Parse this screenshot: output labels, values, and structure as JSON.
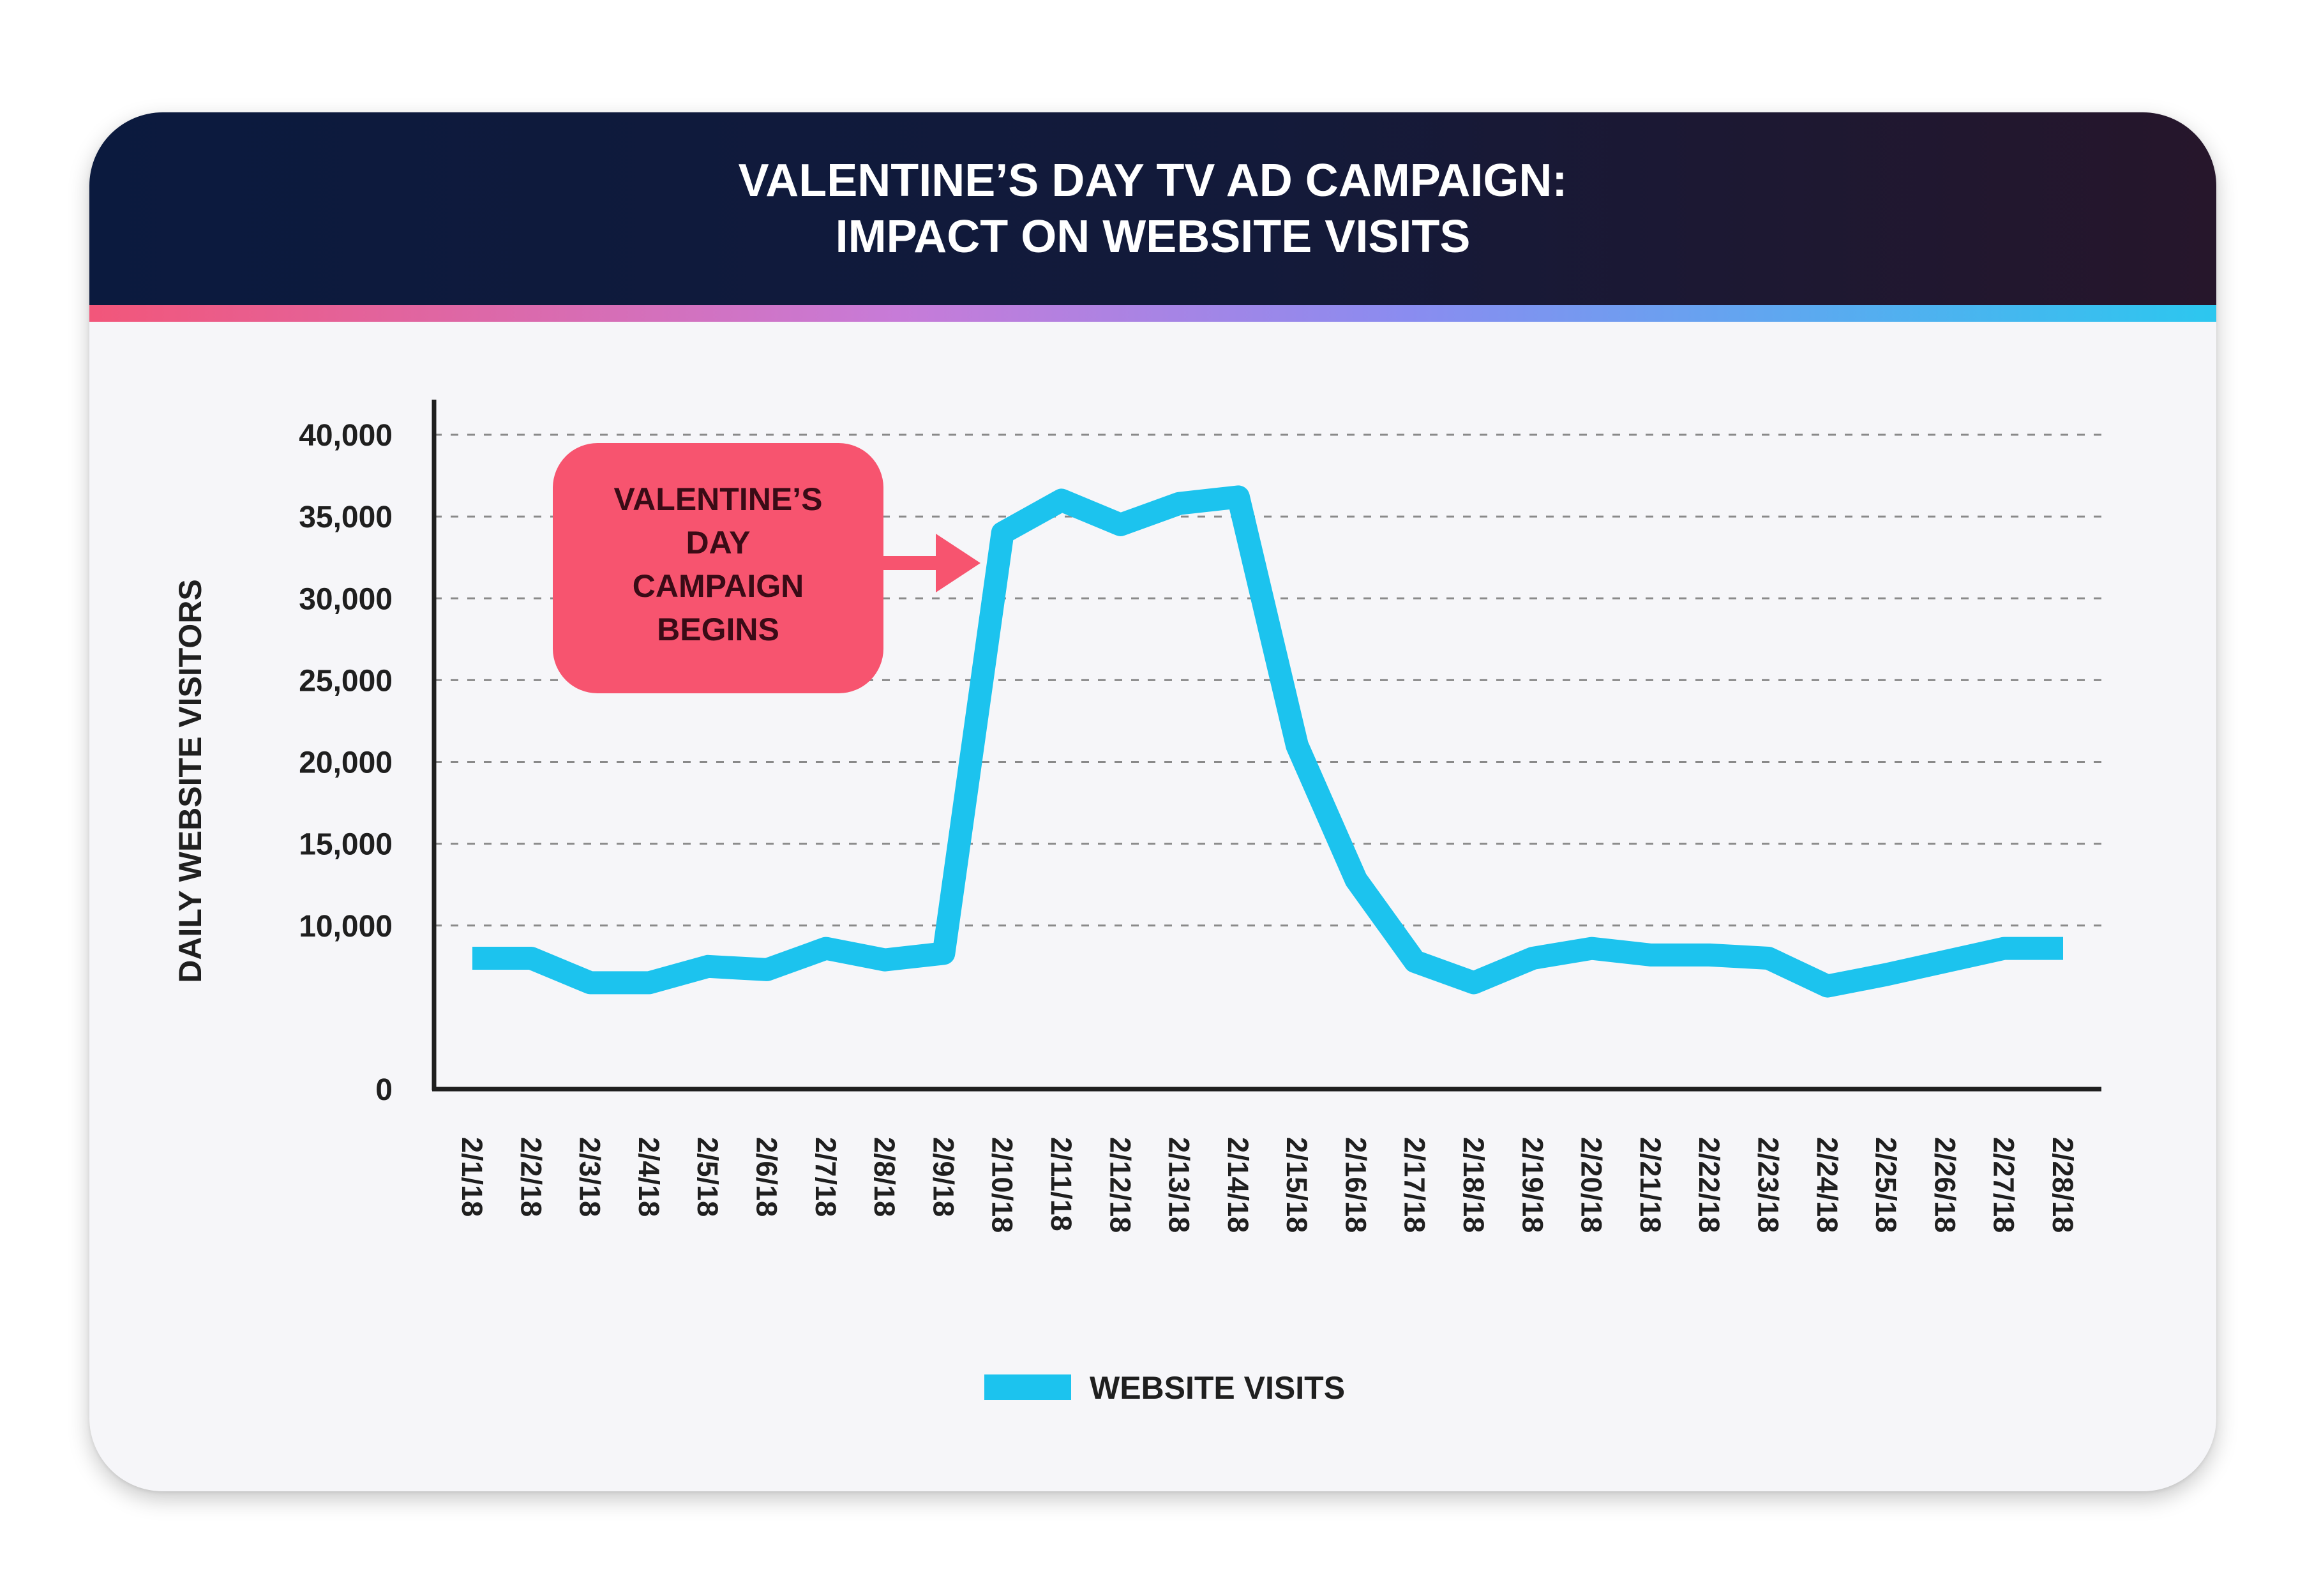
{
  "header": {
    "title_line1": "VALENTINE’S DAY TV AD CAMPAIGN:",
    "title_line2": "IMPACT ON WEBSITE VISITS"
  },
  "colors": {
    "line": "#1cc3ee",
    "callout": "#f7546f",
    "axis": "#1f1f1f",
    "grid": "#8a8a8a"
  },
  "annotation": {
    "lines": [
      "VALENTINE’S",
      "DAY",
      "CAMPAIGN",
      "BEGINS"
    ],
    "points_to": "2/10/18"
  },
  "chart_data": {
    "type": "line",
    "ylabel": "DAILY WEBSITE VISITORS",
    "ylim": [
      0,
      40000
    ],
    "yticks": [
      0,
      10000,
      15000,
      20000,
      25000,
      30000,
      35000,
      40000
    ],
    "ytick_labels": [
      "0",
      "10,000",
      "15,000",
      "20,000",
      "25,000",
      "30,000",
      "35,000",
      "40,000"
    ],
    "grid": true,
    "legend": "bottom-center",
    "categories": [
      "2/1/18",
      "2/2/18",
      "2/3/18",
      "2/4/18",
      "2/5/18",
      "2/6/18",
      "2/7/18",
      "2/8/18",
      "2/9/18",
      "2/10/18",
      "2/11/18",
      "2/12/18",
      "2/13/18",
      "2/14/18",
      "2/15/18",
      "2/16/18",
      "2/17/18",
      "2/18/18",
      "2/19/18",
      "2/20/18",
      "2/21/18",
      "2/22/18",
      "2/23/18",
      "2/24/18",
      "2/25/18",
      "2/26/18",
      "2/27/18",
      "2/28/18"
    ],
    "series": [
      {
        "name": "WEBSITE VISITS",
        "values": [
          8000,
          8000,
          6500,
          6500,
          7500,
          7300,
          8600,
          7900,
          8300,
          34000,
          36000,
          34500,
          35800,
          36200,
          21000,
          12800,
          7800,
          6500,
          8000,
          8600,
          8200,
          8200,
          8000,
          6300,
          7000,
          7800,
          8600,
          8600
        ]
      }
    ]
  }
}
